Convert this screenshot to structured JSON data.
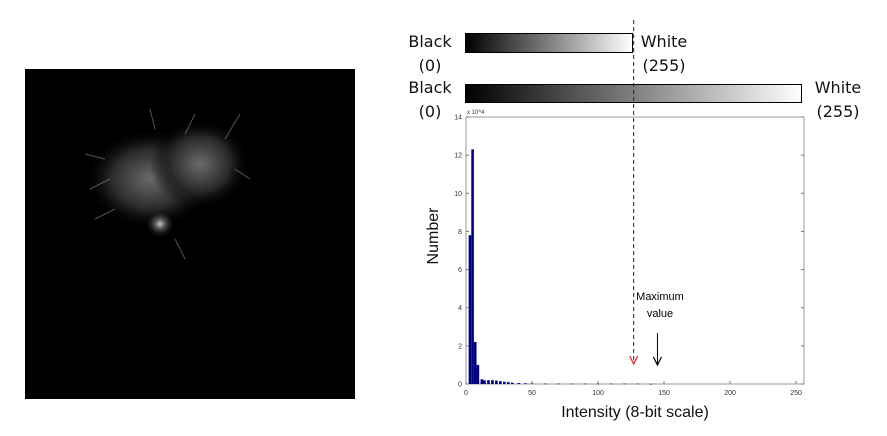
{
  "colorbars": {
    "top": {
      "left_label": "Black",
      "left_value": "(0)",
      "right_label": "White",
      "right_value": "(255)"
    },
    "bottom": {
      "left_label": "Black",
      "left_value": "(0)",
      "right_label": "White",
      "right_value": "(255)"
    }
  },
  "annotation": {
    "max_label_line1": "Maximum",
    "max_label_line2": "value",
    "dashed_marker_intensity": 127,
    "max_intensity": 145,
    "dashed_color": "#e02020"
  },
  "chart_data": {
    "type": "bar",
    "xlabel": "Intensity (8-bit scale)",
    "ylabel": "Number",
    "y_multiplier": "x 10^4",
    "xlim": [
      0,
      256
    ],
    "ylim": [
      0,
      14
    ],
    "xticks": [
      0,
      50,
      100,
      150,
      200,
      250
    ],
    "yticks": [
      0,
      2,
      4,
      6,
      8,
      10,
      12,
      14
    ],
    "bar_color": "#000080",
    "x": [
      3,
      5,
      7,
      9,
      12,
      14,
      17,
      20,
      23,
      26,
      29,
      32,
      35,
      40,
      45,
      50,
      60,
      70,
      80,
      90,
      100,
      110,
      120,
      130,
      140
    ],
    "values": [
      7.8,
      12.3,
      2.2,
      1.0,
      0.25,
      0.2,
      0.2,
      0.2,
      0.18,
      0.15,
      0.12,
      0.1,
      0.07,
      0.05,
      0.04,
      0.03,
      0.02,
      0.02,
      0.02,
      0.02,
      0.02,
      0.02,
      0.02,
      0.02,
      0.01
    ]
  }
}
